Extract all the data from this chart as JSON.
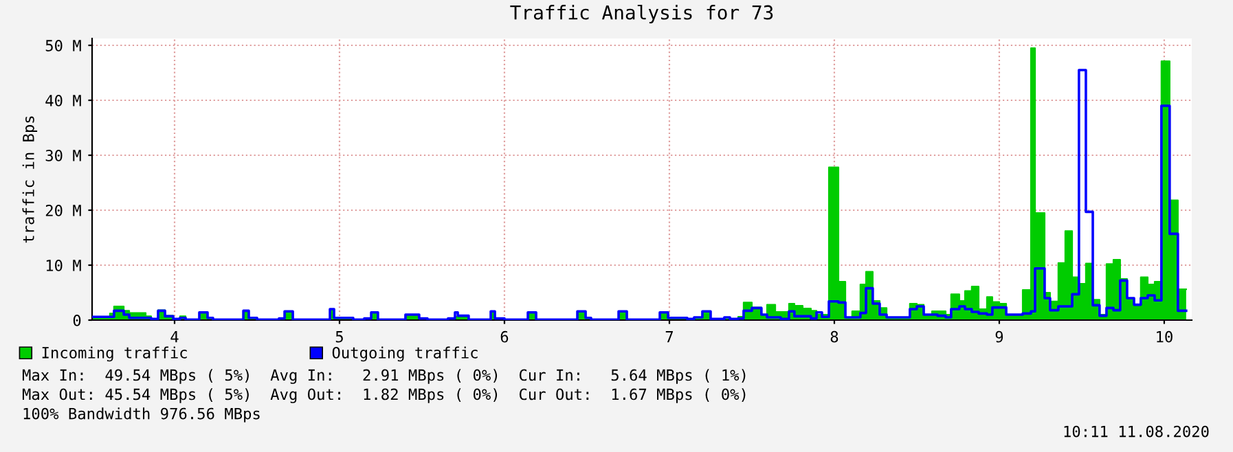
{
  "chart_data": {
    "type": "step",
    "title": "Traffic Analysis for 73",
    "ylabel": "traffic in Bps",
    "x": [
      3.5,
      3.55,
      3.608,
      3.633,
      3.692,
      3.725,
      3.825,
      3.858,
      3.9,
      3.942,
      3.992,
      4.033,
      4.067,
      4.15,
      4.2,
      4.233,
      4.417,
      4.45,
      4.5,
      4.633,
      4.667,
      4.717,
      4.942,
      4.967,
      5.083,
      5.15,
      5.192,
      5.233,
      5.4,
      5.483,
      5.533,
      5.658,
      5.7,
      5.717,
      5.783,
      5.917,
      5.942,
      6.0,
      6.142,
      6.192,
      6.442,
      6.492,
      6.525,
      6.692,
      6.742,
      6.942,
      6.992,
      7.042,
      7.108,
      7.15,
      7.2,
      7.25,
      7.333,
      7.367,
      7.417,
      7.45,
      7.5,
      7.558,
      7.592,
      7.642,
      7.675,
      7.725,
      7.758,
      7.808,
      7.858,
      7.892,
      7.925,
      7.967,
      8.025,
      8.067,
      8.108,
      8.158,
      8.192,
      8.233,
      8.275,
      8.317,
      8.375,
      8.458,
      8.5,
      8.542,
      8.592,
      8.625,
      8.675,
      8.708,
      8.758,
      8.792,
      8.833,
      8.875,
      8.925,
      8.958,
      9.0,
      9.042,
      9.067,
      9.142,
      9.192,
      9.217,
      9.275,
      9.308,
      9.358,
      9.4,
      9.442,
      9.483,
      9.525,
      9.567,
      9.608,
      9.65,
      9.692,
      9.733,
      9.775,
      9.817,
      9.858,
      9.9,
      9.942,
      9.983,
      10.033,
      10.083,
      10.133
    ],
    "series": [
      {
        "name": "Incoming traffic",
        "type": "area",
        "color": "#00cc00",
        "values": [
          0.5,
          0.6,
          1.2,
          2.5,
          1.7,
          1.3,
          0.7,
          0.2,
          1.8,
          0.8,
          0.2,
          0.7,
          0.1,
          1.4,
          0.4,
          0.1,
          1.7,
          0.4,
          0.1,
          0.3,
          1.6,
          0.1,
          2.0,
          0.4,
          0.1,
          0.3,
          1.4,
          0.1,
          1.0,
          0.3,
          0.1,
          0.3,
          0.6,
          0.8,
          0.1,
          1.6,
          0.3,
          0.1,
          1.4,
          0.1,
          1.6,
          0.4,
          0.1,
          1.6,
          0.1,
          1.4,
          0.3,
          0.1,
          0.2,
          0.5,
          1.6,
          0.2,
          0.2,
          0.2,
          0.6,
          3.2,
          2.3,
          1.0,
          2.8,
          1.5,
          1.5,
          3.0,
          2.6,
          2.1,
          1.7,
          1.0,
          1.0,
          27.8,
          7.0,
          0.5,
          1.6,
          6.5,
          8.8,
          3.5,
          2.2,
          0.5,
          0.4,
          3.0,
          2.8,
          1.0,
          1.6,
          1.6,
          1.0,
          4.7,
          3.5,
          5.3,
          6.1,
          2.0,
          4.2,
          3.3,
          3.0,
          1.0,
          0.8,
          5.5,
          49.5,
          19.5,
          5.0,
          3.4,
          10.4,
          16.2,
          7.8,
          6.6,
          10.3,
          3.7,
          1.0,
          10.2,
          11.0,
          7.5,
          4.0,
          2.8,
          7.8,
          6.5,
          7.0,
          47.1,
          21.8,
          5.6,
          5.6
        ]
      },
      {
        "name": "Outgoing traffic",
        "color": "#0000ff",
        "values": [
          0.6,
          0.6,
          0.6,
          1.7,
          1.0,
          0.4,
          0.4,
          0.2,
          1.7,
          0.7,
          0.2,
          0.4,
          0.1,
          1.4,
          0.4,
          0.1,
          1.7,
          0.4,
          0.1,
          0.3,
          1.6,
          0.1,
          2.0,
          0.4,
          0.1,
          0.3,
          1.4,
          0.1,
          1.0,
          0.3,
          0.1,
          0.3,
          1.4,
          0.8,
          0.1,
          1.6,
          0.3,
          0.1,
          1.4,
          0.1,
          1.6,
          0.4,
          0.1,
          1.6,
          0.1,
          1.4,
          0.4,
          0.4,
          0.2,
          0.5,
          1.6,
          0.2,
          0.5,
          0.2,
          0.3,
          1.7,
          2.2,
          1.0,
          0.5,
          0.5,
          0.2,
          1.6,
          0.7,
          0.7,
          0.3,
          1.4,
          0.6,
          3.4,
          3.2,
          0.5,
          0.5,
          1.3,
          5.8,
          3.0,
          1.0,
          0.5,
          0.5,
          2.0,
          2.5,
          1.0,
          1.0,
          0.8,
          0.5,
          2.0,
          2.5,
          2.0,
          1.5,
          1.2,
          1.0,
          2.3,
          2.3,
          1.0,
          1.0,
          1.2,
          1.6,
          9.4,
          4.0,
          1.8,
          2.5,
          2.5,
          4.7,
          45.5,
          19.7,
          2.7,
          0.8,
          2.2,
          1.8,
          7.2,
          4.0,
          2.8,
          4.0,
          4.5,
          3.6,
          39.0,
          15.7,
          1.7,
          1.7
        ]
      }
    ],
    "xlim": [
      3.5,
      10.167
    ],
    "xticks": [
      4,
      5,
      6,
      7,
      8,
      9,
      10
    ],
    "ylim": [
      0,
      51.25
    ],
    "yticks": [
      0,
      {
        "value": 10,
        "label": "10 M"
      },
      {
        "value": 20,
        "label": "20 M"
      },
      {
        "value": 30,
        "label": "30 M"
      },
      {
        "value": 40,
        "label": "40 M"
      },
      {
        "value": 50,
        "label": "50 M"
      }
    ],
    "grid": true,
    "legend": "bottom",
    "annotations": [
      "Max In:  49.54 MBps ( 5%)  Avg In:   2.91 MBps ( 0%)  Cur In:   5.64 MBps ( 1%)",
      "Max Out: 45.54 MBps ( 5%)  Avg Out:  1.82 MBps ( 0%)  Cur Out:  1.67 MBps ( 0%)",
      "100% Bandwidth 976.56 MBps",
      "10:11 11.08.2020"
    ]
  }
}
